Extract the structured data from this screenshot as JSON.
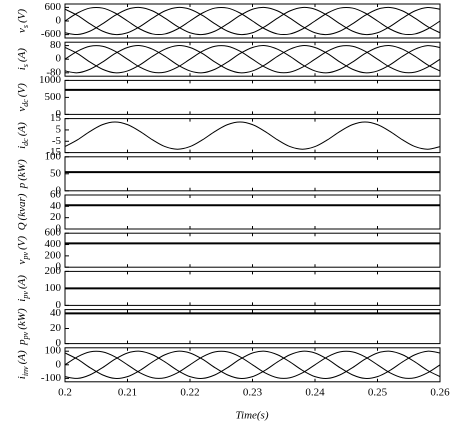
{
  "chart_data": {
    "type": "line",
    "xlabel": "Time(s)",
    "xlim": [
      0.2,
      0.26
    ],
    "xticks": [
      0.2,
      0.21,
      0.22,
      0.23,
      0.24,
      0.25,
      0.26
    ],
    "x": [
      0.2,
      0.202,
      0.204,
      0.206,
      0.208,
      0.21,
      0.212,
      0.214,
      0.216,
      0.218,
      0.22,
      0.222,
      0.224,
      0.226,
      0.228,
      0.23,
      0.232,
      0.234,
      0.236,
      0.238,
      0.24,
      0.242,
      0.244,
      0.246,
      0.248,
      0.25,
      0.252,
      0.254,
      0.256,
      0.258,
      0.26
    ],
    "panels": [
      {
        "ylabel": {
          "text": "v",
          "sub": "s",
          "unit": "(V)"
        },
        "ylim": [
          -750,
          750
        ],
        "yticks": [
          -600,
          0,
          600
        ],
        "series": [
          {
            "color": "#000000",
            "values": [
              0,
              353,
              571,
              571,
              353,
              0,
              -353,
              -571,
              -571,
              -353,
              0,
              353,
              571,
              571,
              353,
              0,
              -353,
              -571,
              -571,
              -353,
              0,
              353,
              571,
              571,
              353,
              0,
              -353,
              -571,
              -571,
              -353,
              0
            ]
          },
          {
            "color": "#000000",
            "values": [
              -520,
              -597,
              -446,
              -125,
              244,
              520,
              597,
              446,
              125,
              -244,
              -520,
              -597,
              -446,
              -125,
              244,
              520,
              597,
              446,
              125,
              -244,
              -520,
              -597,
              -446,
              -125,
              244,
              520,
              597,
              446,
              125,
              -244,
              -520
            ]
          },
          {
            "color": "#000000",
            "values": [
              520,
              244,
              -125,
              -446,
              -597,
              -520,
              -244,
              125,
              446,
              597,
              520,
              244,
              -125,
              -446,
              -597,
              -520,
              -244,
              125,
              446,
              597,
              520,
              244,
              -125,
              -446,
              -597,
              -520,
              -244,
              125,
              446,
              597,
              520
            ]
          }
        ]
      },
      {
        "ylabel": {
          "text": "i",
          "sub": "s",
          "unit": "(A)"
        },
        "ylim": [
          -100,
          100
        ],
        "yticks": [
          -80,
          0,
          80
        ],
        "series": [
          {
            "color": "#000000",
            "values": [
              0,
              47,
              76,
              76,
              47,
              0,
              -47,
              -76,
              -76,
              -47,
              0,
              47,
              76,
              76,
              47,
              0,
              -47,
              -76,
              -76,
              -47,
              0,
              47,
              76,
              76,
              47,
              0,
              -47,
              -76,
              -76,
              -47,
              0
            ]
          },
          {
            "color": "#000000",
            "values": [
              -69,
              -80,
              -59,
              -17,
              33,
              69,
              80,
              59,
              17,
              -33,
              -69,
              -80,
              -59,
              -17,
              33,
              69,
              80,
              59,
              17,
              -33,
              -69,
              -80,
              -59,
              -17,
              33,
              69,
              80,
              59,
              17,
              -33,
              -69
            ]
          },
          {
            "color": "#000000",
            "values": [
              69,
              33,
              -17,
              -59,
              -80,
              -69,
              -33,
              17,
              59,
              80,
              69,
              33,
              -17,
              -59,
              -80,
              -69,
              -33,
              17,
              59,
              80,
              69,
              33,
              -17,
              -59,
              -80,
              -69,
              -33,
              17,
              59,
              80,
              69
            ]
          }
        ]
      },
      {
        "ylabel": {
          "text": "v",
          "sub": "dc",
          "unit": "(V)"
        },
        "ylim": [
          0,
          1000
        ],
        "yticks": [
          0,
          500,
          1000
        ],
        "series": [
          {
            "color": "#000000",
            "values": [
              720,
              720,
              720,
              720,
              720,
              720,
              720,
              720,
              720,
              720,
              720,
              720,
              720,
              720,
              720,
              720,
              720,
              720,
              720,
              720,
              720,
              720,
              720,
              720,
              720,
              720,
              720,
              720,
              720,
              720,
              720
            ]
          }
        ]
      },
      {
        "ylabel": {
          "text": "i",
          "sub": "dc",
          "unit": "(A)"
        },
        "ylim": [
          -15,
          15
        ],
        "yticks": [
          -15,
          -5,
          5,
          15
        ],
        "series": [
          {
            "color": "#000000",
            "values": [
              -9.7,
              -3.7,
              3.7,
              9.7,
              12,
              9.7,
              3.7,
              -3.7,
              -9.7,
              -12,
              -9.7,
              -3.7,
              3.7,
              9.7,
              12,
              9.7,
              3.7,
              -3.7,
              -9.7,
              -12,
              -9.7,
              -3.7,
              3.7,
              9.7,
              12,
              9.7,
              3.7,
              -3.7,
              -9.7,
              -12,
              -9.7
            ]
          }
        ]
      },
      {
        "ylabel": {
          "text": "p",
          "unit": "(kW)"
        },
        "ylim": [
          0,
          100
        ],
        "yticks": [
          0,
          50,
          100
        ],
        "series": [
          {
            "color": "#000000",
            "values": [
              55,
              55,
              55,
              55,
              55,
              55,
              55,
              55,
              55,
              55,
              55,
              55,
              55,
              55,
              55,
              55,
              55,
              55,
              55,
              55,
              55,
              55,
              55,
              55,
              55,
              55,
              55,
              55,
              55,
              55,
              55
            ]
          }
        ]
      },
      {
        "ylabel": {
          "text": "Q",
          "unit": "(kvar)"
        },
        "ylim": [
          0,
          60
        ],
        "yticks": [
          0,
          20,
          40,
          60
        ],
        "series": [
          {
            "color": "#000000",
            "values": [
              42,
              42,
              42,
              42,
              42,
              42,
              42,
              42,
              42,
              42,
              42,
              42,
              42,
              42,
              42,
              42,
              42,
              42,
              42,
              42,
              42,
              42,
              42,
              42,
              42,
              42,
              42,
              42,
              42,
              42,
              42
            ]
          }
        ]
      },
      {
        "ylabel": {
          "text": "v",
          "sub": "pv",
          "unit": "(V)"
        },
        "ylim": [
          0,
          600
        ],
        "yticks": [
          0,
          200,
          400,
          600
        ],
        "series": [
          {
            "color": "#000000",
            "values": [
              420,
              420,
              420,
              420,
              420,
              420,
              420,
              420,
              420,
              420,
              420,
              420,
              420,
              420,
              420,
              420,
              420,
              420,
              420,
              420,
              420,
              420,
              420,
              420,
              420,
              420,
              420,
              420,
              420,
              420,
              420
            ]
          }
        ]
      },
      {
        "ylabel": {
          "text": "i",
          "sub": "pv",
          "unit": "(A)"
        },
        "ylim": [
          0,
          200
        ],
        "yticks": [
          0,
          100,
          200
        ],
        "series": [
          {
            "color": "#000000",
            "values": [
              100,
              100,
              100,
              100,
              100,
              100,
              100,
              100,
              100,
              100,
              100,
              100,
              100,
              100,
              100,
              100,
              100,
              100,
              100,
              100,
              100,
              100,
              100,
              100,
              100,
              100,
              100,
              100,
              100,
              100,
              100
            ]
          }
        ]
      },
      {
        "ylabel": {
          "text": "p",
          "sub": "pv",
          "unit": "(kW)"
        },
        "ylim": [
          0,
          45
        ],
        "yticks": [
          0,
          20,
          40
        ],
        "series": [
          {
            "color": "#000000",
            "values": [
              40,
              40,
              40,
              40,
              40,
              40,
              40,
              40,
              40,
              40,
              40,
              40,
              40,
              40,
              40,
              40,
              40,
              40,
              40,
              40,
              40,
              40,
              40,
              40,
              40,
              40,
              40,
              40,
              40,
              40,
              40
            ]
          }
        ]
      },
      {
        "ylabel": {
          "text": "i",
          "sub": "inv",
          "unit": "(A)"
        },
        "ylim": [
          -125,
          125
        ],
        "yticks": [
          -100,
          0,
          100
        ],
        "series": [
          {
            "color": "#000000",
            "values": [
              0,
              59,
              95,
              95,
              59,
              0,
              -59,
              -95,
              -95,
              -59,
              0,
              59,
              95,
              95,
              59,
              0,
              -59,
              -95,
              -95,
              -59,
              0,
              59,
              95,
              95,
              59,
              0,
              -59,
              -95,
              -95,
              -59,
              0
            ]
          },
          {
            "color": "#000000",
            "values": [
              -87,
              -100,
              -74,
              -21,
              41,
              87,
              100,
              74,
              21,
              -41,
              -87,
              -100,
              -74,
              -21,
              41,
              87,
              100,
              74,
              21,
              -41,
              -87,
              -100,
              -74,
              -21,
              41,
              87,
              100,
              74,
              21,
              -41,
              -87
            ]
          },
          {
            "color": "#000000",
            "values": [
              87,
              41,
              -21,
              -74,
              -100,
              -87,
              -41,
              21,
              74,
              100,
              87,
              41,
              -21,
              -74,
              -100,
              -87,
              -41,
              21,
              74,
              100,
              87,
              41,
              -21,
              -74,
              -100,
              -87,
              -41,
              21,
              74,
              100,
              87
            ]
          }
        ]
      }
    ]
  }
}
